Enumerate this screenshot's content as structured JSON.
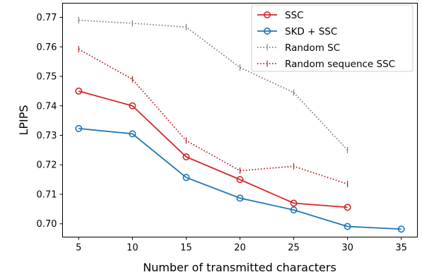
{
  "chart_data": {
    "type": "line",
    "xlabel": "Number of transmitted characters",
    "ylabel": "LPIPS",
    "xlim": [
      3.5,
      36.5
    ],
    "ylim": [
      0.6955,
      0.7748
    ],
    "xticks": [
      5,
      10,
      15,
      20,
      25,
      30,
      35
    ],
    "yticks": [
      0.7,
      0.71,
      0.72,
      0.73,
      0.74,
      0.75,
      0.76,
      0.77
    ],
    "ytick_labels": [
      "0.70",
      "0.71",
      "0.72",
      "0.73",
      "0.74",
      "0.75",
      "0.76",
      "0.77"
    ],
    "legend_position": "top-right",
    "grid": false,
    "series": [
      {
        "name": "SSC",
        "color": "#d62728",
        "style": "solid",
        "marker": "circle",
        "x": [
          5,
          10,
          15,
          20,
          25,
          30
        ],
        "y": [
          0.745,
          0.74,
          0.7227,
          0.715,
          0.707,
          0.7056
        ]
      },
      {
        "name": "SKD + SSC",
        "color": "#1f77b4",
        "style": "solid",
        "marker": "circle",
        "x": [
          5,
          10,
          15,
          20,
          25,
          30,
          35
        ],
        "y": [
          0.7323,
          0.7305,
          0.7157,
          0.7087,
          0.7047,
          0.6991,
          0.6982
        ]
      },
      {
        "name": "Random SC",
        "color": "#7f7f7f",
        "style": "dotted",
        "marker": "errorbar",
        "x": [
          5,
          10,
          15,
          20,
          25,
          30
        ],
        "y": [
          0.769,
          0.768,
          0.7667,
          0.753,
          0.7445,
          0.725
        ]
      },
      {
        "name": "Random sequence SSC",
        "color": "#b22222",
        "style": "dotted",
        "marker": "errorbar",
        "x": [
          5,
          10,
          15,
          20,
          25,
          30
        ],
        "y": [
          0.7592,
          0.749,
          0.7282,
          0.718,
          0.7195,
          0.7135
        ]
      }
    ]
  }
}
